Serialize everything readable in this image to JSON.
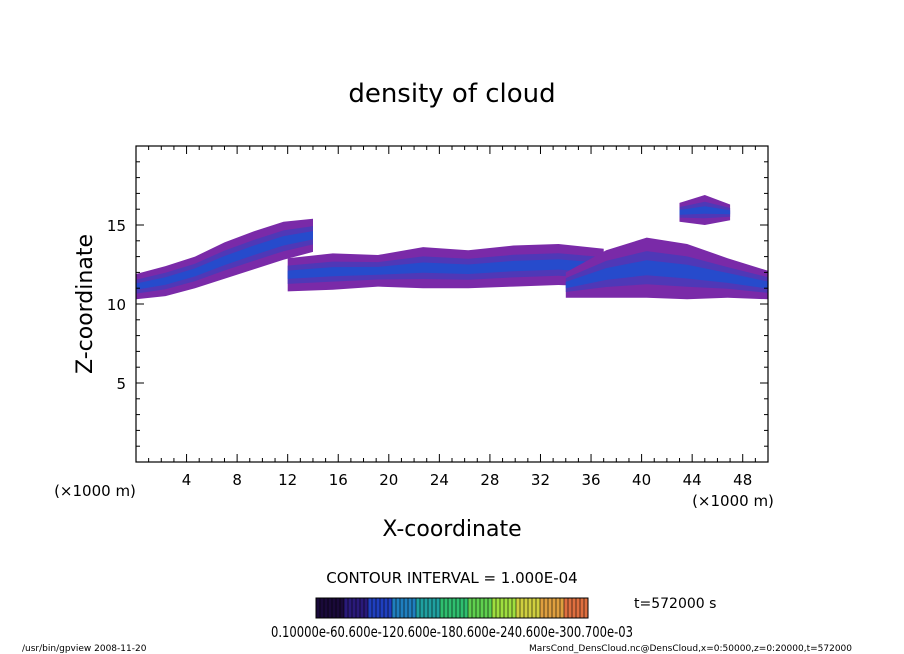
{
  "chart_data": {
    "type": "heatmap",
    "title": "density of cloud",
    "xlabel": "X-coordinate",
    "ylabel": "Z-coordinate",
    "x_unit": "(×1000 m)",
    "y_unit": "(×1000 m)",
    "xlim": [
      0,
      50
    ],
    "ylim": [
      0,
      20
    ],
    "x_ticks": [
      4,
      8,
      12,
      16,
      20,
      24,
      28,
      32,
      36,
      40,
      44,
      48
    ],
    "y_ticks": [
      5,
      10,
      15
    ],
    "x_ticks_display": [
      "4",
      "8",
      "12",
      "16",
      "20",
      "24",
      "28",
      "32",
      "36",
      "40",
      "44",
      "48"
    ],
    "y_ticks_display": [
      "5",
      "10",
      "15"
    ],
    "contour_interval": "CONTOUR INTERVAL = 1.000E-04",
    "time_label": "t=572000 s",
    "colorbar_labels": "0.10000e-60.600e-120.600e-180.600e-240.600e-300.700e-03",
    "colorbar_colors": [
      "#1a0a3a",
      "#2a1a7a",
      "#1f3fbf",
      "#1f7fbf",
      "#1fa0a0",
      "#2fbf6f",
      "#5fd04f",
      "#9fdf3f",
      "#cfcf3f",
      "#df9f3f",
      "#df6f3f",
      "#cf3f3f"
    ],
    "cloud_colors": {
      "low": "#7a2aa8",
      "mid": "#4a3ab8",
      "high": "#1f4fd0",
      "peak": "#2f8ff0"
    },
    "cloud_bands": [
      {
        "name": "band-west",
        "x_start": 0,
        "x_end": 14,
        "z_bottom": [
          10.3,
          10.5,
          11.0,
          11.6,
          12.2,
          12.8,
          13.3
        ],
        "z_top": [
          11.9,
          12.4,
          13.0,
          13.9,
          14.6,
          15.2,
          15.4
        ]
      },
      {
        "name": "band-central",
        "x_start": 12,
        "x_end": 37,
        "z_bottom": [
          10.8,
          10.9,
          11.1,
          11.0,
          11.0,
          11.1,
          11.2,
          11.1
        ],
        "z_top": [
          12.9,
          13.2,
          13.1,
          13.6,
          13.4,
          13.7,
          13.8,
          13.5
        ]
      },
      {
        "name": "band-east",
        "x_start": 34,
        "x_end": 50,
        "z_bottom": [
          10.4,
          10.4,
          10.4,
          10.3,
          10.4,
          10.3
        ],
        "z_top": [
          12.0,
          13.4,
          14.2,
          13.8,
          12.9,
          12.1
        ]
      },
      {
        "name": "cloud-high-east",
        "x_start": 43,
        "x_end": 47,
        "z_bottom": [
          15.2,
          15.0,
          15.3
        ],
        "z_top": [
          16.4,
          16.9,
          16.3
        ]
      }
    ]
  },
  "footer": {
    "left": "/usr/bin/gpview  2008-11-20",
    "right": "MarsCond_DensCloud.nc@DensCloud,x=0:50000,z=0:20000,t=572000"
  },
  "colors": {
    "axis": "#000000",
    "background": "#ffffff"
  }
}
